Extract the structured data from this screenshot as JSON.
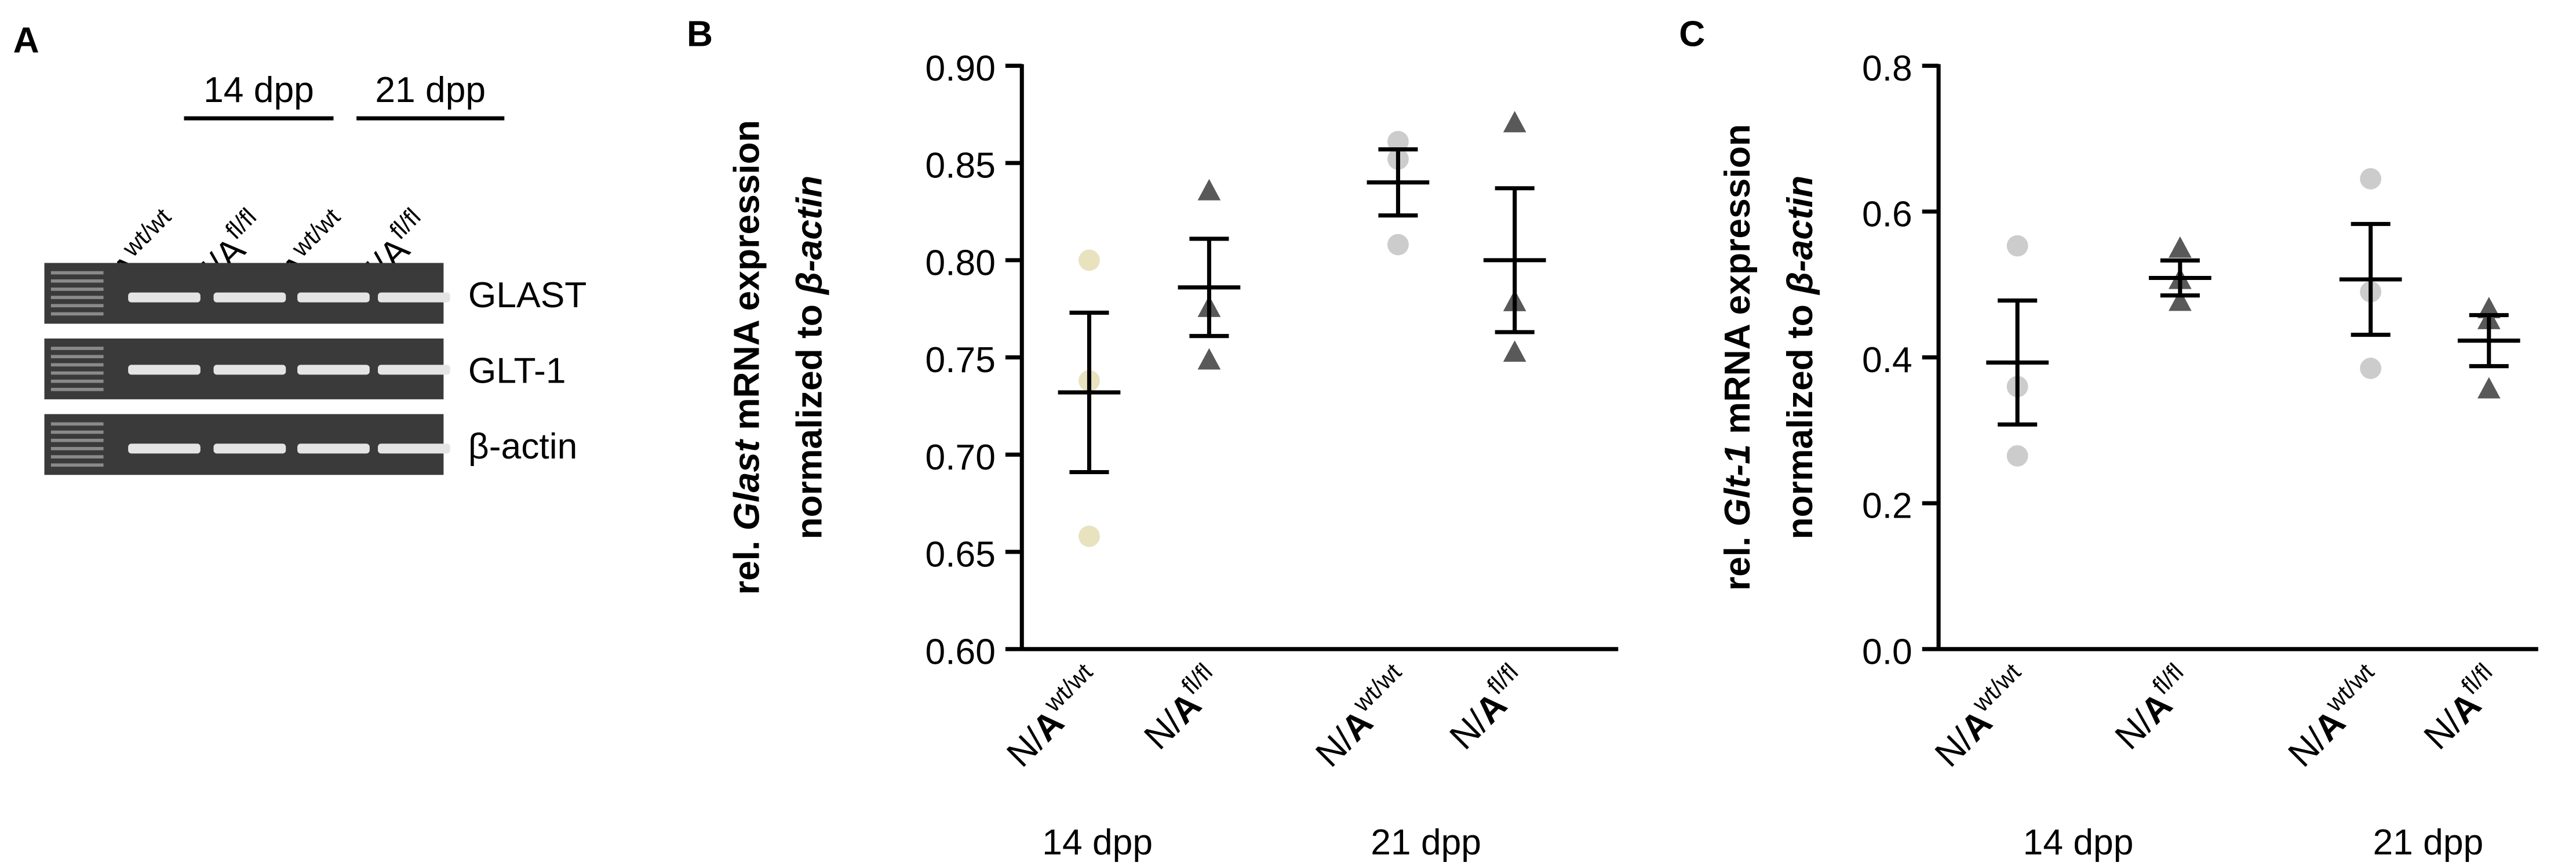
{
  "gel": {
    "panel": "A",
    "groups": [
      "14 dpp",
      "21 dpp"
    ],
    "lanes": [
      {
        "base": "N/A",
        "sup": "wt/wt"
      },
      {
        "base": "N/A",
        "sup": "fl/fl"
      },
      {
        "base": "N/A",
        "sup": "wt/wt"
      },
      {
        "base": "N/A",
        "sup": "fl/fl"
      }
    ],
    "rows": [
      "GLAST",
      "GLT-1",
      "β-actin"
    ]
  },
  "chart_data": [
    {
      "type": "scatter",
      "panel": "B",
      "ylabel": [
        [
          {
            "text": "rel. "
          },
          {
            "text": "Glast",
            "italic": true
          },
          {
            "text": " mRNA expression"
          }
        ],
        [
          {
            "text": "normalized to "
          },
          {
            "text": "β-actin",
            "italic": true
          }
        ]
      ],
      "categories": [
        {
          "base": "N/",
          "bold": "A",
          "sup": "wt/wt"
        },
        {
          "base": "N/",
          "bold": "A",
          "sup": "fl/fl"
        },
        {
          "base": "N/",
          "bold": "A",
          "sup": "wt/wt"
        },
        {
          "base": "N/",
          "bold": "A",
          "sup": "fl/fl"
        }
      ],
      "group_labels": [
        "14 dpp",
        "21 dpp"
      ],
      "ylim": [
        0.6,
        0.9
      ],
      "yticks": [
        {
          "value": 0.6,
          "label": "0.60"
        },
        {
          "value": 0.65,
          "label": "0.65"
        },
        {
          "value": 0.7,
          "label": "0.70"
        },
        {
          "value": 0.75,
          "label": "0.75"
        },
        {
          "value": 0.8,
          "label": "0.80"
        },
        {
          "value": 0.85,
          "label": "0.85"
        },
        {
          "value": 0.9,
          "label": "0.90"
        }
      ],
      "data": [
        {
          "points": [
            0.8,
            0.738,
            0.658
          ],
          "mean": 0.732,
          "sem": 0.041,
          "color": "#e8e2bf",
          "marker": "circle"
        },
        {
          "points": [
            0.835,
            0.775,
            0.748
          ],
          "mean": 0.786,
          "sem": 0.025,
          "color": "#595959",
          "marker": "triangle"
        },
        {
          "points": [
            0.861,
            0.852,
            0.808
          ],
          "mean": 0.84,
          "sem": 0.017,
          "color": "#cccccc",
          "marker": "circle"
        },
        {
          "points": [
            0.87,
            0.778,
            0.752
          ],
          "mean": 0.8,
          "sem": 0.037,
          "color": "#595959",
          "marker": "triangle"
        }
      ]
    },
    {
      "type": "scatter",
      "panel": "C",
      "ylabel": [
        [
          {
            "text": "rel. "
          },
          {
            "text": "Glt-1",
            "italic": true
          },
          {
            "text": " mRNA expression"
          }
        ],
        [
          {
            "text": "normalized to "
          },
          {
            "text": "β-actin",
            "italic": true
          }
        ]
      ],
      "categories": [
        {
          "base": "N/",
          "bold": "A",
          "sup": "wt/wt"
        },
        {
          "base": "N/",
          "bold": "A",
          "sup": "fl/fl"
        },
        {
          "base": "N/",
          "bold": "A",
          "sup": "wt/wt"
        },
        {
          "base": "N/",
          "bold": "A",
          "sup": "fl/fl"
        }
      ],
      "group_labels": [
        "14 dpp",
        "21 dpp"
      ],
      "ylim": [
        0,
        0.8
      ],
      "yticks": [
        {
          "value": 0,
          "label": "0.0"
        },
        0.2,
        0.4,
        0.6,
        0.8
      ],
      "data": [
        {
          "points": [
            0.553,
            0.36,
            0.265
          ],
          "mean": 0.393,
          "sem": 0.085,
          "color": "#cccccc",
          "marker": "circle"
        },
        {
          "points": [
            0.548,
            0.505,
            0.475
          ],
          "mean": 0.509,
          "sem": 0.024,
          "color": "#595959",
          "marker": "triangle"
        },
        {
          "points": [
            0.645,
            0.49,
            0.385
          ],
          "mean": 0.507,
          "sem": 0.076,
          "color": "#cccccc",
          "marker": "circle"
        },
        {
          "points": [
            0.465,
            0.45,
            0.355
          ],
          "mean": 0.423,
          "sem": 0.035,
          "color": "#595959",
          "marker": "triangle"
        }
      ]
    }
  ]
}
